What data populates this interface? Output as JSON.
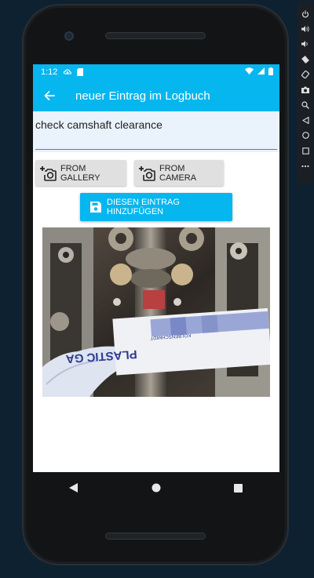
{
  "status_bar": {
    "time": "1:12",
    "icons": [
      "cloud-upload-icon",
      "sd-card-icon",
      "wifi-icon",
      "signal-icon",
      "battery-icon"
    ]
  },
  "app_bar": {
    "title": "neuer Eintrag im Logbuch",
    "back_icon": "arrow-back-icon"
  },
  "entry": {
    "value": "check camshaft clearance",
    "placeholder": ""
  },
  "buttons": {
    "gallery_label": "FROM GALLERY",
    "camera_label": "FROM CAMERA",
    "add_label": "DIESEN EINTRAG HINZUFÜGEN"
  },
  "photo": {
    "description_icon": "engine-camshaft-photo",
    "gauge_text": "PLASTIC GA",
    "gauge_sub": "KOLBENSCHMIDT"
  },
  "nav_bar": {
    "icons": [
      "back-triangle-icon",
      "home-circle-icon",
      "recents-square-icon"
    ]
  },
  "emulator_toolbar": {
    "icons": [
      "power-icon",
      "volume-up-icon",
      "volume-down-icon",
      "rotate-left-icon",
      "rotate-right-icon",
      "camera-icon",
      "zoom-icon",
      "back-icon",
      "home-icon",
      "overview-icon",
      "more-icon"
    ]
  },
  "colors": {
    "accent": "#05b6ef",
    "input_bg": "#eaf2fc",
    "button_bg": "#e0e0e0"
  }
}
